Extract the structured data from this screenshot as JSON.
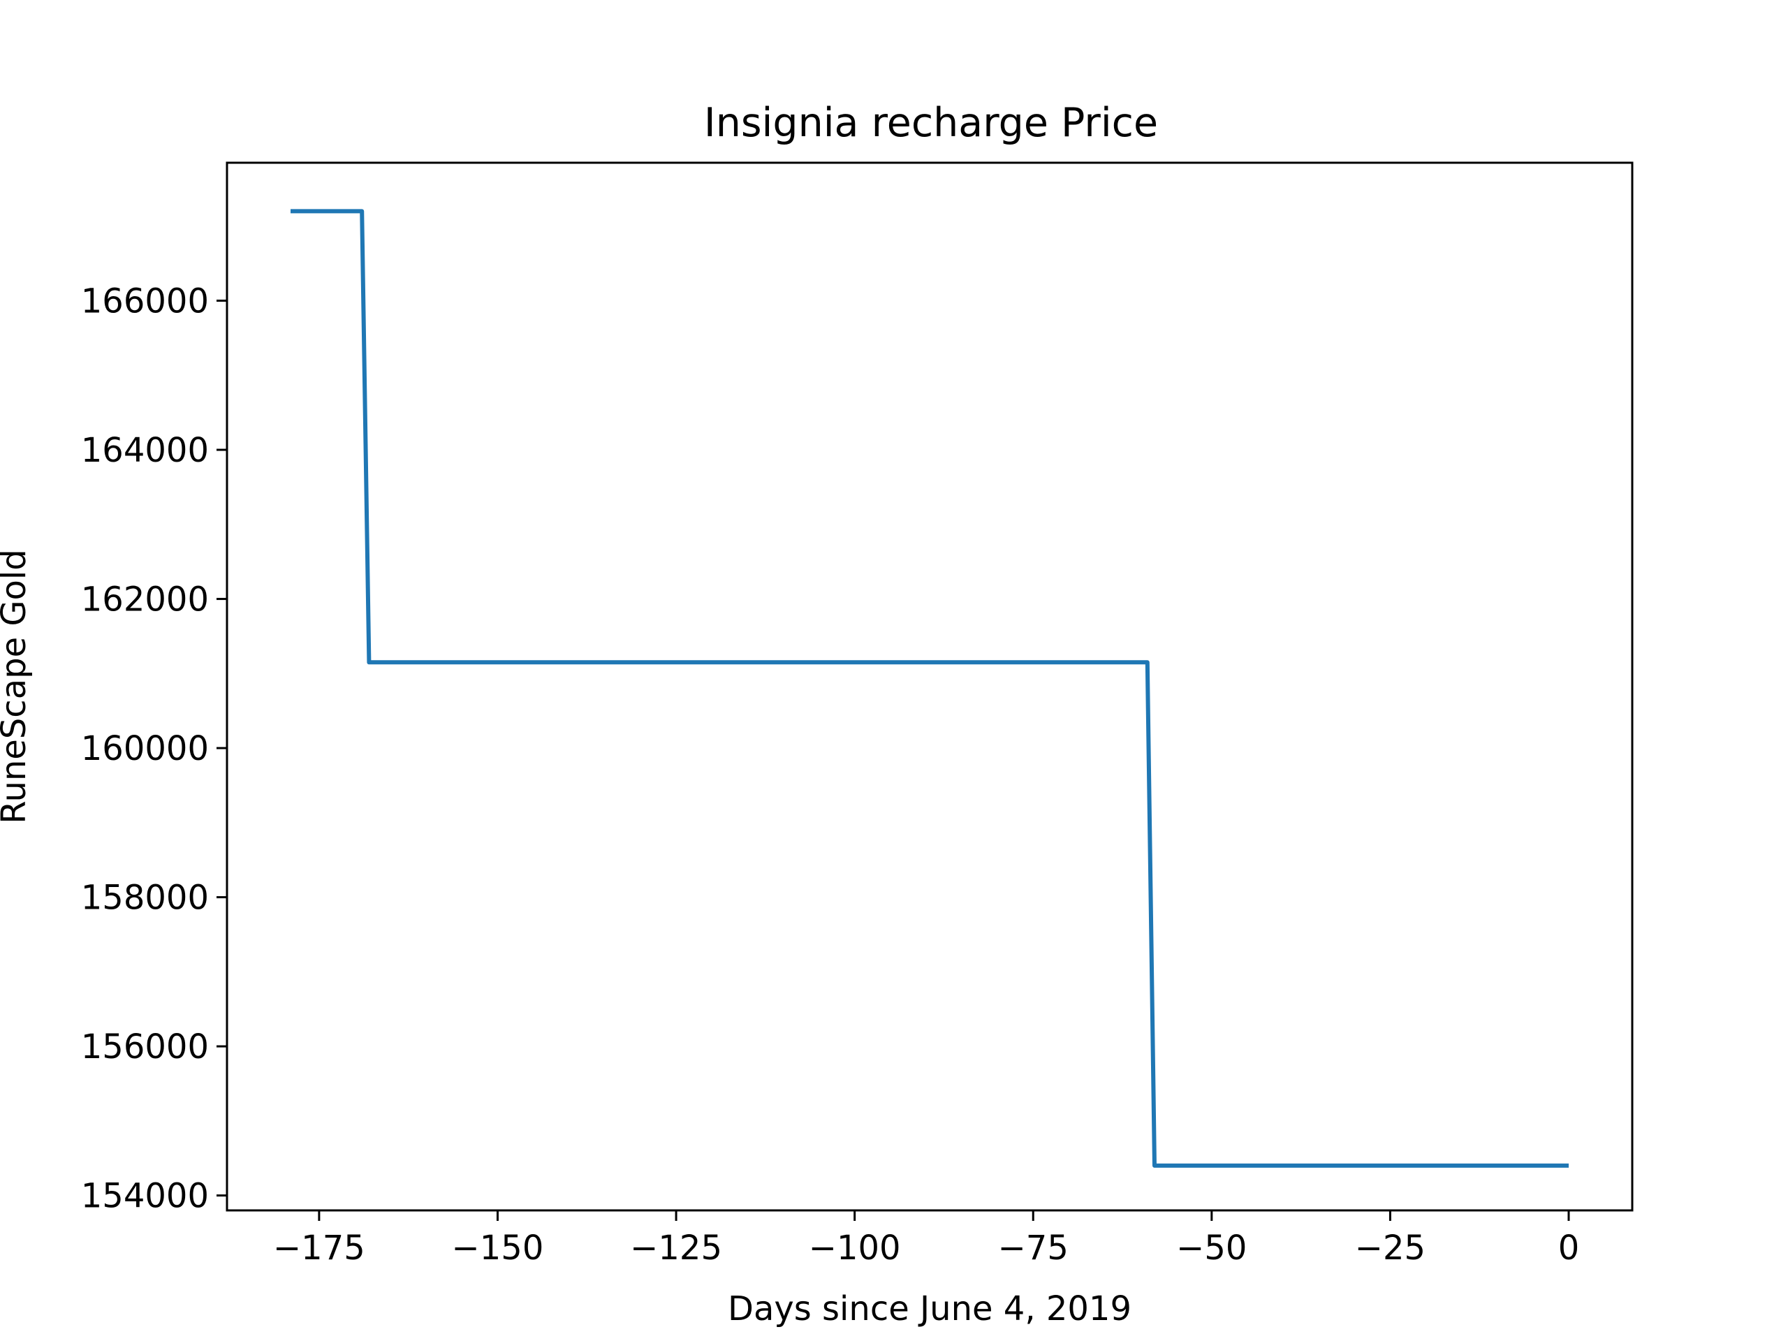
{
  "chart_data": {
    "type": "line",
    "title": "Insignia recharge Price",
    "xlabel": "Days since June 4, 2019",
    "ylabel": "RuneScape Gold",
    "xlim": [
      -187.9,
      8.9
    ],
    "ylim": [
      153800,
      167850
    ],
    "x_ticks": [
      -175,
      -150,
      -125,
      -100,
      -75,
      -50,
      -25,
      0
    ],
    "x_tick_labels": [
      "−175",
      "−150",
      "−125",
      "−100",
      "−75",
      "−50",
      "−25",
      "0"
    ],
    "y_ticks": [
      154000,
      156000,
      158000,
      160000,
      162000,
      164000,
      166000
    ],
    "y_tick_labels": [
      "154000",
      "156000",
      "158000",
      "160000",
      "162000",
      "164000",
      "166000"
    ],
    "grid": false,
    "series": [
      {
        "color": "#1f77b4",
        "x": [
          -179,
          -169,
          -168,
          -59,
          -58,
          0
        ],
        "y": [
          167200,
          167200,
          161150,
          161150,
          154400,
          154400
        ]
      }
    ]
  }
}
